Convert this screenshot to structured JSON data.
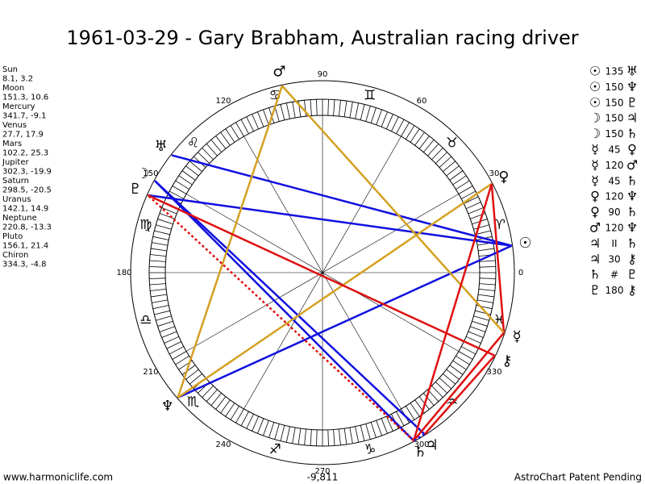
{
  "title": "1961-03-29 - Gary Brabham, Australian racing driver",
  "planets": [
    {
      "name": "Sun",
      "position": "8.1, 3.2",
      "glyph": "☉"
    },
    {
      "name": "Moon",
      "position": "151.3, 10.6",
      "glyph": "☽"
    },
    {
      "name": "Mercury",
      "position": "341.7, -9.1",
      "glyph": "☿"
    },
    {
      "name": "Venus",
      "position": "27.7, 17.9",
      "glyph": "♀"
    },
    {
      "name": "Mars",
      "position": "102.2, 25.3",
      "glyph": "♂"
    },
    {
      "name": "Jupiter",
      "position": "302.3, -19.9",
      "glyph": "♃"
    },
    {
      "name": "Saturn",
      "position": "298.5, -20.5",
      "glyph": "♄"
    },
    {
      "name": "Uranus",
      "position": "142.1, 14.9",
      "glyph": "♅"
    },
    {
      "name": "Neptune",
      "position": "220.8, -13.3",
      "glyph": "♆"
    },
    {
      "name": "Pluto",
      "position": "156.1, 21.4",
      "glyph": "♇"
    },
    {
      "name": "Chiron",
      "position": "334.3, -4.8",
      "glyph": "⚷"
    }
  ],
  "aspects": [
    {
      "from": "Sun",
      "aspect": "135",
      "to": "Uranus",
      "color": "#1010e0"
    },
    {
      "from": "Sun",
      "aspect": "150",
      "to": "Neptune",
      "color": "#1010e0"
    },
    {
      "from": "Sun",
      "aspect": "150",
      "to": "Pluto",
      "color": "#1010e0"
    },
    {
      "from": "Moon",
      "aspect": "150",
      "to": "Jupiter",
      "color": "#1010e0"
    },
    {
      "from": "Moon",
      "aspect": "150",
      "to": "Saturn",
      "color": "#1010e0"
    },
    {
      "from": "Mercury",
      "aspect": "45",
      "to": "Venus",
      "color": "#e01010"
    },
    {
      "from": "Mercury",
      "aspect": "120",
      "to": "Mars",
      "color": "#d4a020"
    },
    {
      "from": "Mercury",
      "aspect": "45",
      "to": "Saturn",
      "color": "#e01010"
    },
    {
      "from": "Venus",
      "aspect": "120",
      "to": "Neptune",
      "color": "#d4a020"
    },
    {
      "from": "Venus",
      "aspect": "90",
      "to": "Saturn",
      "color": "#e01010"
    },
    {
      "from": "Mars",
      "aspect": "120",
      "to": "Neptune",
      "color": "#d4a020"
    },
    {
      "from": "Jupiter",
      "aspect": "II",
      "to": "Saturn",
      "color": "#1010e0"
    },
    {
      "from": "Jupiter",
      "aspect": "30",
      "to": "Chiron",
      "color": "#e01010"
    },
    {
      "from": "Saturn",
      "aspect": "#",
      "to": "Pluto",
      "color": "#e01010"
    },
    {
      "from": "Pluto",
      "aspect": "180",
      "to": "Chiron",
      "color": "#e01010"
    }
  ],
  "wheel": {
    "degree_labels": [
      0,
      30,
      60,
      90,
      120,
      150,
      180,
      210,
      240,
      270,
      300,
      330
    ],
    "signs": [
      "♈",
      "♉",
      "♊",
      "♋",
      "♌",
      "♍",
      "♎",
      "♏",
      "♐",
      "♑",
      "♒",
      "♓"
    ]
  },
  "footer": {
    "site": "www.harmoniclife.com",
    "value": "-9,811",
    "note": "AstroChart Patent Pending"
  }
}
